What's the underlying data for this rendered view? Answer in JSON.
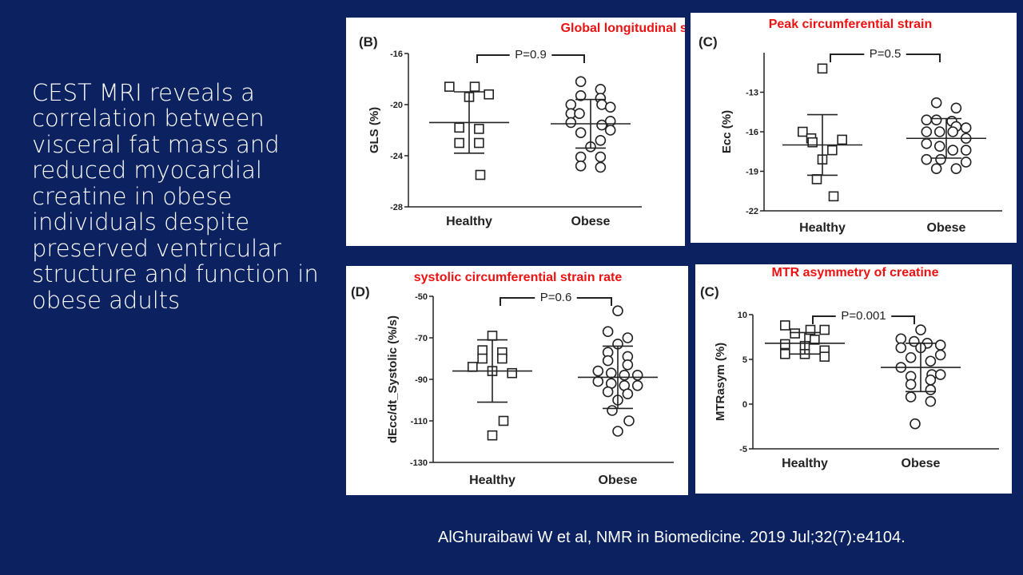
{
  "slide": {
    "body_text": "CEST MRI reveals a correlation between visceral fat mass and reduced myocardial creatine in obese individuals despite preserved ventricular structure and function in obese adults",
    "citation": "AlGhuraibawi W et al, NMR in Biomedicine. 2019 Jul;32(7):e4104."
  },
  "colors": {
    "background": "#0b2160",
    "panel": "#ffffff",
    "title": "#ee1111"
  },
  "chart_data": [
    {
      "type": "scatter",
      "panel_label": "(B)",
      "title": "Global longitudinal strain",
      "ylabel": "GLS (%)",
      "ylim": [
        -28,
        -16
      ],
      "yticks": [
        -16,
        -20,
        -24,
        -28
      ],
      "categories": [
        "Healthy",
        "Obese"
      ],
      "p_value": "P=0.9",
      "series": [
        {
          "name": "Healthy",
          "marker": "square",
          "mean": -21.4,
          "sd": 2.4,
          "values": [
            -18.6,
            -18.6,
            -19.2,
            -19.4,
            -21.8,
            -21.9,
            -23.0,
            -23.0,
            -25.5
          ]
        },
        {
          "name": "Obese",
          "marker": "circle",
          "mean": -21.5,
          "sd": 1.9,
          "values": [
            -18.2,
            -18.8,
            -19.3,
            -19.5,
            -20.0,
            -20.0,
            -20.2,
            -20.7,
            -20.7,
            -21.3,
            -21.4,
            -21.6,
            -22.0,
            -22.2,
            -22.8,
            -23.3,
            -24.1,
            -24.1,
            -24.8,
            -24.9
          ]
        }
      ]
    },
    {
      "type": "scatter",
      "panel_label": "(C)",
      "title": "Peak circumferential strain",
      "ylabel": "Ecc (%)",
      "ylim": [
        -22,
        -10
      ],
      "yticks": [
        -13,
        -16,
        -19,
        -22
      ],
      "categories": [
        "Healthy",
        "Obese"
      ],
      "p_value": "P=0.5",
      "series": [
        {
          "name": "Healthy",
          "marker": "square",
          "mean": -17.0,
          "sd": 2.3,
          "values": [
            -11.2,
            -16.0,
            -16.5,
            -16.6,
            -16.8,
            -17.4,
            -18.1,
            -19.6,
            -20.9
          ]
        },
        {
          "name": "Obese",
          "marker": "circle",
          "mean": -16.5,
          "sd": 1.5,
          "values": [
            -13.8,
            -14.2,
            -15.1,
            -15.1,
            -15.2,
            -15.6,
            -15.7,
            -16.0,
            -16.0,
            -16.0,
            -16.5,
            -16.9,
            -17.1,
            -17.4,
            -17.4,
            -18.1,
            -18.1,
            -18.3,
            -18.8,
            -18.8
          ]
        }
      ]
    },
    {
      "type": "scatter",
      "panel_label": "(D)",
      "title": "systolic circumferential strain rate",
      "ylabel": "dEcc/dt_Systolic (%/s)",
      "ylim": [
        -130,
        -50
      ],
      "yticks": [
        -50,
        -70,
        -90,
        -110,
        -130
      ],
      "categories": [
        "Healthy",
        "Obese"
      ],
      "p_value": "P=0.6",
      "series": [
        {
          "name": "Healthy",
          "marker": "square",
          "mean": -86,
          "sd": 15,
          "values": [
            -69,
            -76,
            -77,
            -80,
            -80,
            -84,
            -86,
            -87,
            -110,
            -117
          ]
        },
        {
          "name": "Obese",
          "marker": "circle",
          "mean": -89,
          "sd": 15,
          "values": [
            -57,
            -67,
            -70,
            -73,
            -77,
            -79,
            -81,
            -83,
            -86,
            -87,
            -88,
            -88,
            -91,
            -92,
            -93,
            -93,
            -96,
            -97,
            -100,
            -105,
            -110,
            -115
          ]
        }
      ]
    },
    {
      "type": "scatter",
      "panel_label": "(C)",
      "title": "MTR asymmetry of creatine",
      "ylabel": "MTRasym (%)",
      "ylim": [
        -5,
        10
      ],
      "yticks": [
        10,
        5,
        0,
        -5
      ],
      "categories": [
        "Healthy",
        "Obese"
      ],
      "p_value": "P=0.001",
      "series": [
        {
          "name": "Healthy",
          "marker": "square",
          "mean": 6.8,
          "sd": 1.2,
          "values": [
            8.8,
            8.3,
            8.3,
            7.9,
            7.2,
            6.7,
            6.5,
            6.0,
            5.6,
            5.6,
            5.3
          ]
        },
        {
          "name": "Obese",
          "marker": "circle",
          "mean": 4.1,
          "sd": 2.7,
          "values": [
            8.3,
            7.3,
            7.0,
            6.8,
            6.6,
            6.3,
            6.3,
            5.5,
            5.2,
            4.8,
            4.1,
            3.3,
            3.3,
            3.1,
            2.7,
            2.2,
            1.6,
            0.8,
            0.3,
            -2.2
          ]
        }
      ]
    }
  ]
}
